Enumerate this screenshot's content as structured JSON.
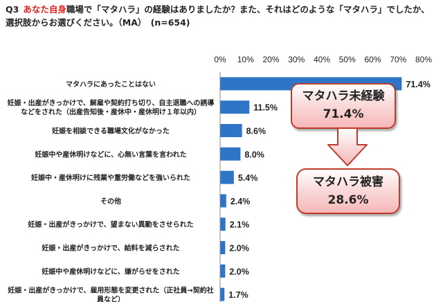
{
  "question": {
    "number": "Q3",
    "highlight": "あなた自身",
    "text_rest": "職場で「マタハラ」の経験はありましたか？また、それはどのような「マタハラ」でしたか、選択肢からお選びください。（MA）　(n=654)"
  },
  "chart_data": {
    "type": "bar",
    "orientation": "horizontal",
    "categories": [
      "マタハラにあったことはない",
      "妊娠・出産がきっかけで、解雇や契約打ち切り、自主退職への誘導などをされた（出産告知後・産休中・産休明け１年以内）",
      "妊娠を相談できる職場文化がなかった",
      "妊娠中や産休明けなどに、心無い言葉を言われた",
      "妊娠中・産休明けに残業や重労働などを強いられた",
      "その他",
      "妊娠・出産がきっかけで、望まない異動をさせられた",
      "妊娠・出産がきっかけで、給料を減らされた",
      "妊娠中や産休明けなどに、嫌がらせをされた",
      "妊娠・出産がきっかけで、雇用形態を変更された（正社員→契約社員など）"
    ],
    "category_lines": [
      [
        "マタハラにあったことはない"
      ],
      [
        "妊娠・出産がきっかけで、解雇や契約打ち切り、自主退職への誘導",
        "などをされた（出産告知後・産休中・産休明け１年以内）"
      ],
      [
        "妊娠を相談できる職場文化がなかった"
      ],
      [
        "妊娠中や産休明けなどに、心無い言葉を言われた"
      ],
      [
        "妊娠中・産休明けに残業や重労働などを強いられた"
      ],
      [
        "その他"
      ],
      [
        "妊娠・出産がきっかけで、望まない異動をさせられた"
      ],
      [
        "妊娠・出産がきっかけで、給料を減らされた"
      ],
      [
        "妊娠中や産休明けなどに、嫌がらせをされた"
      ],
      [
        "妊娠・出産がきっかけで、雇用形態を変更された（正社員→契約社",
        "員など）"
      ]
    ],
    "values": [
      71.4,
      11.5,
      8.6,
      8.0,
      5.4,
      2.4,
      2.1,
      2.0,
      2.0,
      1.7
    ],
    "value_labels": [
      "71.4%",
      "11.5%",
      "8.6%",
      "8.0%",
      "5.4%",
      "2.4%",
      "2.1%",
      "2.0%",
      "2.0%",
      "1.7%"
    ],
    "xlim": [
      0,
      80
    ],
    "x_ticks": [
      0,
      10,
      20,
      30,
      40,
      50,
      60,
      70,
      80
    ],
    "x_tick_labels": [
      "0%",
      "10%",
      "20%",
      "30%",
      "40%",
      "50%",
      "60%",
      "70%",
      "80%"
    ],
    "axis_position": "top",
    "grid": false,
    "bar_color": "#2e75c8"
  },
  "callouts": {
    "unexperienced": {
      "label": "マタハラ未経験",
      "value": "71.4%"
    },
    "victim": {
      "label": "マタハラ被害",
      "value": "28.6%"
    }
  }
}
